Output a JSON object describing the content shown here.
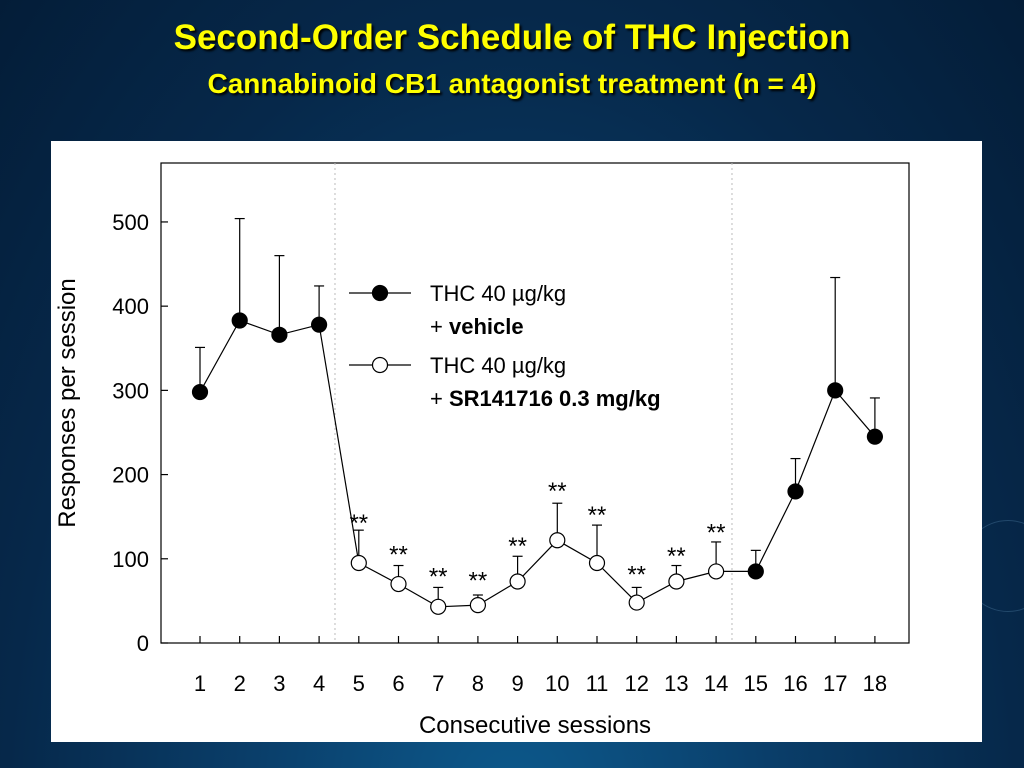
{
  "slide": {
    "title": "Second-Order Schedule of THC Injection",
    "subtitle": "Cannabinoid CB1 antagonist treatment (n = 4)"
  },
  "colors": {
    "background": "#06284a",
    "title": "#ffff00",
    "panel": "#ffffff",
    "ink": "#000000"
  },
  "chart_data": {
    "type": "line",
    "xlabel": "Consecutive sessions",
    "ylabel": "Responses per session",
    "xlim": [
      0.5,
      18.9
    ],
    "ylim": [
      0,
      570
    ],
    "yticks": [
      0,
      100,
      200,
      300,
      400,
      500
    ],
    "categories": [
      1,
      2,
      3,
      4,
      5,
      6,
      7,
      8,
      9,
      10,
      11,
      12,
      13,
      14,
      15,
      16,
      17,
      18
    ],
    "grid": false,
    "phase_dividers_at": [
      4.4,
      14.4
    ],
    "legend_position": "top-center",
    "series": [
      {
        "name_line1": "THC 40 µg/kg",
        "name_line2_prefix": "+ ",
        "name_line2_bold": "vehicle",
        "marker": "filled-circle",
        "segments": [
          {
            "x": [
              1,
              2,
              3,
              4
            ],
            "y": [
              298,
              383,
              366,
              378
            ],
            "err_upper": [
              351,
              504,
              460,
              424
            ]
          },
          {
            "x": [
              15,
              16,
              17,
              18
            ],
            "y": [
              85,
              180,
              300,
              245
            ],
            "err_upper": [
              110,
              219,
              434,
              291
            ]
          }
        ]
      },
      {
        "name_line1": "THC 40 µg/kg",
        "name_line2_prefix": "+ ",
        "name_line2_bold": "SR141716 0.3 mg/kg",
        "marker": "open-circle",
        "segments": [
          {
            "x": [
              5,
              6,
              7,
              8,
              9,
              10,
              11,
              12,
              13,
              14
            ],
            "y": [
              95,
              70,
              43,
              45,
              73,
              122,
              95,
              48,
              73,
              85
            ],
            "err_upper": [
              134,
              92,
              66,
              57,
              103,
              166,
              140,
              66,
              92,
              120
            ]
          }
        ]
      }
    ],
    "annotations": [
      {
        "x": 5,
        "y": 147,
        "text": "**"
      },
      {
        "x": 6,
        "y": 110,
        "text": "**"
      },
      {
        "x": 7,
        "y": 84,
        "text": "**"
      },
      {
        "x": 8,
        "y": 79,
        "text": "**"
      },
      {
        "x": 9,
        "y": 120,
        "text": "**"
      },
      {
        "x": 10,
        "y": 185,
        "text": "**"
      },
      {
        "x": 11,
        "y": 157,
        "text": "**"
      },
      {
        "x": 12,
        "y": 86,
        "text": "**"
      },
      {
        "x": 13,
        "y": 108,
        "text": "**"
      },
      {
        "x": 14,
        "y": 136,
        "text": "**"
      }
    ]
  }
}
